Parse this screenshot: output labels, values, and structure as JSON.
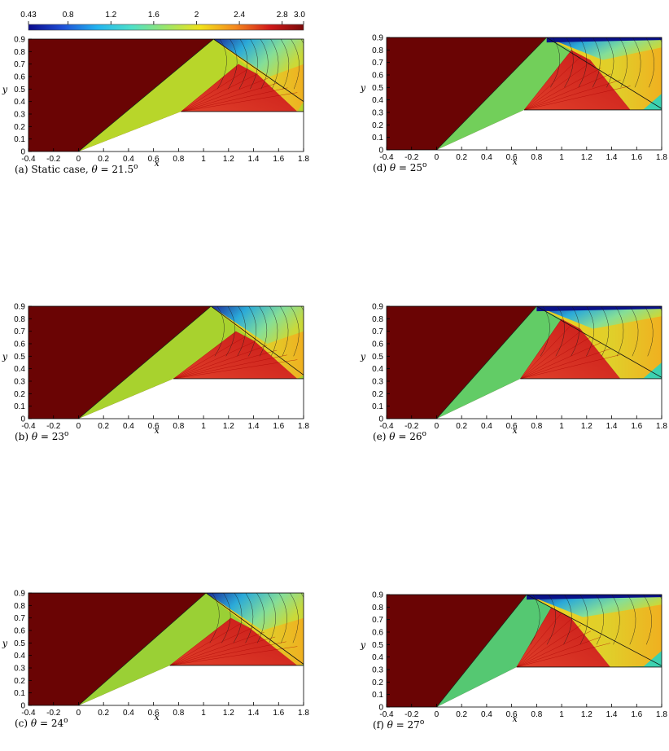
{
  "colorbar": {
    "tick_labels": [
      "0.43",
      "0.8",
      "1.2",
      "1.6",
      "2",
      "2.4",
      "2.8",
      "3.0"
    ],
    "tick_values": [
      0.43,
      0.8,
      1.2,
      1.6,
      2.0,
      2.4,
      2.8,
      3.0
    ],
    "range": [
      0.43,
      3.0
    ],
    "colors": [
      "#0a0a8c",
      "#1f4fd6",
      "#22b4f0",
      "#4ee0c8",
      "#9be66a",
      "#f2e21a",
      "#f58a1e",
      "#d21a1a",
      "#7a0a0a"
    ]
  },
  "chart_data": [
    {
      "type": "heatmap",
      "panel": "a",
      "caption_prefix": "(a) Static case,",
      "theta_symbol": "θ",
      "theta_value": "= 21.5",
      "degree_mark": "o",
      "xlabel": "x",
      "ylabel": "y",
      "xlim": [
        -0.4,
        1.8
      ],
      "ylim": [
        0,
        0.9
      ],
      "x_ticks": [
        "-0.4",
        "-0.2",
        "0",
        "0.2",
        "0.4",
        "0.6",
        "0.8",
        "1",
        "1.2",
        "1.4",
        "1.6",
        "1.8"
      ],
      "y_ticks": [
        "0",
        "0.1",
        "0.2",
        "0.3",
        "0.4",
        "0.5",
        "0.6",
        "0.7",
        "0.8",
        "0.9"
      ],
      "wedge_angle_deg": 21.5,
      "wedge_top_x": 0.82,
      "wedge_top_y": 0.32,
      "shock_top_x": 1.08,
      "refl_end_y": 0.4,
      "mach_stem": false,
      "shocked_color": "#b8d62a",
      "region_b_color": "#cfd72c"
    },
    {
      "type": "heatmap",
      "panel": "b",
      "caption_prefix": "(b)",
      "theta_symbol": "θ",
      "theta_value": "= 23",
      "degree_mark": "o",
      "xlabel": "x",
      "ylabel": "y",
      "xlim": [
        -0.4,
        1.8
      ],
      "ylim": [
        0,
        0.9
      ],
      "x_ticks": [
        "-0.4",
        "-0.2",
        "0",
        "0.2",
        "0.4",
        "0.6",
        "0.8",
        "1",
        "1.2",
        "1.4",
        "1.6",
        "1.8"
      ],
      "y_ticks": [
        "0",
        "0.1",
        "0.2",
        "0.3",
        "0.4",
        "0.5",
        "0.6",
        "0.7",
        "0.8",
        "0.9"
      ],
      "wedge_angle_deg": 23,
      "wedge_top_x": 0.76,
      "wedge_top_y": 0.32,
      "shock_top_x": 1.06,
      "refl_end_y": 0.35,
      "mach_stem": false,
      "shocked_color": "#a8d22e",
      "region_b_color": "#cfd72c"
    },
    {
      "type": "heatmap",
      "panel": "c",
      "caption_prefix": "(c)",
      "theta_symbol": "θ",
      "theta_value": "= 24",
      "degree_mark": "o",
      "xlabel": "x",
      "ylabel": "y",
      "xlim": [
        -0.4,
        1.8
      ],
      "ylim": [
        0,
        0.9
      ],
      "x_ticks": [
        "-0.4",
        "-0.2",
        "0",
        "0.2",
        "0.4",
        "0.6",
        "0.8",
        "1",
        "1.2",
        "1.4",
        "1.6",
        "1.8"
      ],
      "y_ticks": [
        "0",
        "0.1",
        "0.2",
        "0.3",
        "0.4",
        "0.5",
        "0.6",
        "0.7",
        "0.8",
        "0.9"
      ],
      "wedge_angle_deg": 24,
      "wedge_top_x": 0.73,
      "wedge_top_y": 0.32,
      "shock_top_x": 1.02,
      "refl_end_y": 0.33,
      "mach_stem": false,
      "shocked_color": "#9ad035",
      "region_b_color": "#cfd72c"
    },
    {
      "type": "heatmap",
      "panel": "d",
      "caption_prefix": "(d)",
      "theta_symbol": "θ",
      "theta_value": "= 25",
      "degree_mark": "o",
      "xlabel": "x",
      "ylabel": "y",
      "xlim": [
        -0.4,
        1.8
      ],
      "ylim": [
        0,
        0.9
      ],
      "x_ticks": [
        "-0.4",
        "-0.2",
        "0",
        "0.2",
        "0.4",
        "0.6",
        "0.8",
        "1",
        "1.2",
        "1.4",
        "1.6",
        "1.8"
      ],
      "y_ticks": [
        "0",
        "0.1",
        "0.2",
        "0.3",
        "0.4",
        "0.5",
        "0.6",
        "0.7",
        "0.8",
        "0.9"
      ],
      "wedge_angle_deg": 25,
      "wedge_top_x": 0.7,
      "wedge_top_y": 0.32,
      "shock_top_x": 0.88,
      "refl_end_y": 0.33,
      "mach_stem": true,
      "shocked_color": "#72cf5a",
      "region_b_color": "#c8d630"
    },
    {
      "type": "heatmap",
      "panel": "e",
      "caption_prefix": "(e)",
      "theta_symbol": "θ",
      "theta_value": "= 26",
      "degree_mark": "o",
      "xlabel": "x",
      "ylabel": "y",
      "xlim": [
        -0.4,
        1.8
      ],
      "ylim": [
        0,
        0.9
      ],
      "x_ticks": [
        "-0.4",
        "-0.2",
        "0",
        "0.2",
        "0.4",
        "0.6",
        "0.8",
        "1",
        "1.2",
        "1.4",
        "1.6",
        "1.8"
      ],
      "y_ticks": [
        "0",
        "0.1",
        "0.2",
        "0.3",
        "0.4",
        "0.5",
        "0.6",
        "0.7",
        "0.8",
        "0.9"
      ],
      "wedge_angle_deg": 26,
      "wedge_top_x": 0.67,
      "wedge_top_y": 0.32,
      "shock_top_x": 0.8,
      "refl_end_y": 0.33,
      "mach_stem": true,
      "shocked_color": "#62cc66",
      "region_b_color": "#c8d630"
    },
    {
      "type": "heatmap",
      "panel": "f",
      "caption_prefix": "(f)",
      "theta_symbol": "θ",
      "theta_value": "= 27",
      "degree_mark": "o",
      "xlabel": "x",
      "ylabel": "y",
      "xlim": [
        -0.4,
        1.8
      ],
      "ylim": [
        0,
        0.9
      ],
      "x_ticks": [
        "-0.4",
        "-0.2",
        "0",
        "0.2",
        "0.4",
        "0.6",
        "0.8",
        "1",
        "1.2",
        "1.4",
        "1.6",
        "1.8"
      ],
      "y_ticks": [
        "0",
        "0.1",
        "0.2",
        "0.3",
        "0.4",
        "0.5",
        "0.6",
        "0.7",
        "0.8",
        "0.9"
      ],
      "wedge_angle_deg": 27,
      "wedge_top_x": 0.64,
      "wedge_top_y": 0.32,
      "shock_top_x": 0.72,
      "refl_end_y": 0.33,
      "mach_stem": true,
      "shocked_color": "#55c872",
      "region_b_color": "#c8d630"
    }
  ]
}
